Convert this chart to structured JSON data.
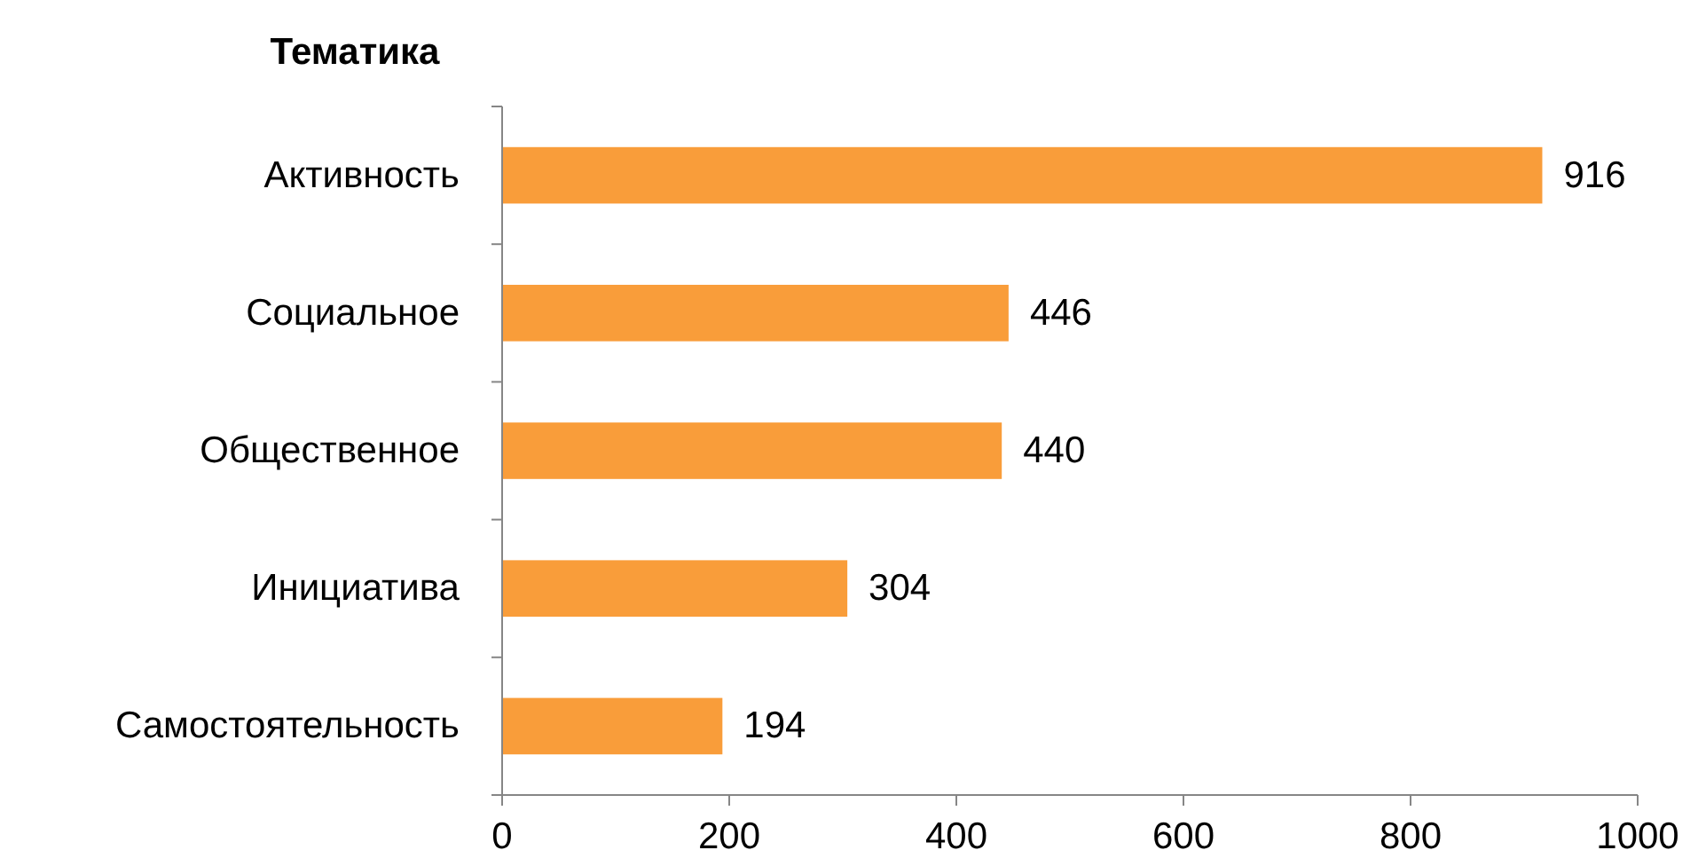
{
  "chart_data": {
    "type": "bar",
    "orientation": "horizontal",
    "title": "Тематика",
    "categories": [
      "Активность",
      "Социальное",
      "Общественное",
      "Инициатива",
      "Самостоятельность"
    ],
    "values": [
      916,
      446,
      440,
      304,
      194
    ],
    "color": "#f99d3a",
    "data_labels": true,
    "xlim": [
      0,
      1000
    ],
    "xticks": [
      0,
      200,
      400,
      600,
      800,
      1000
    ],
    "grid": false
  }
}
